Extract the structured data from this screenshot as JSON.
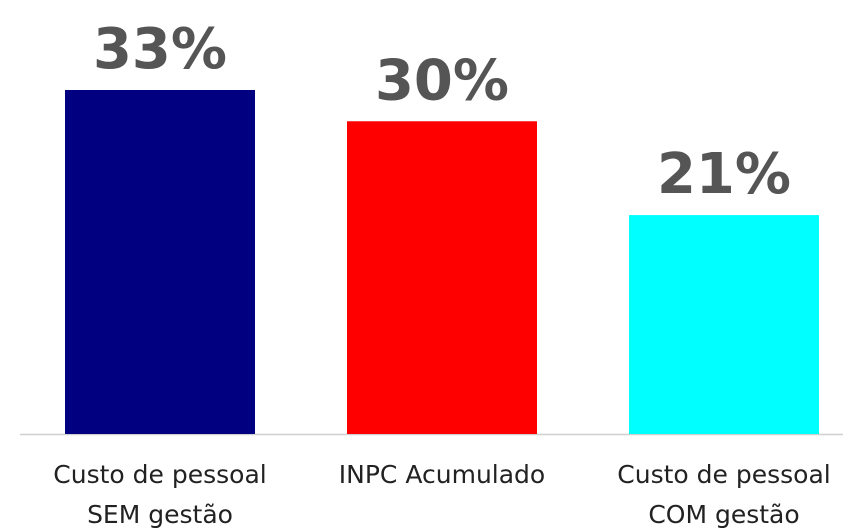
{
  "chart_data": {
    "type": "bar",
    "categories": [
      "Custo de pessoal\nSEM gestão",
      "INPC Acumulado",
      "Custo de pessoal\nCOM gestão"
    ],
    "values": [
      33,
      30,
      21
    ],
    "value_labels": [
      "33%",
      "30%",
      "21%"
    ],
    "colors": [
      "#000080",
      "#ff0000",
      "#00ffff"
    ]
  }
}
